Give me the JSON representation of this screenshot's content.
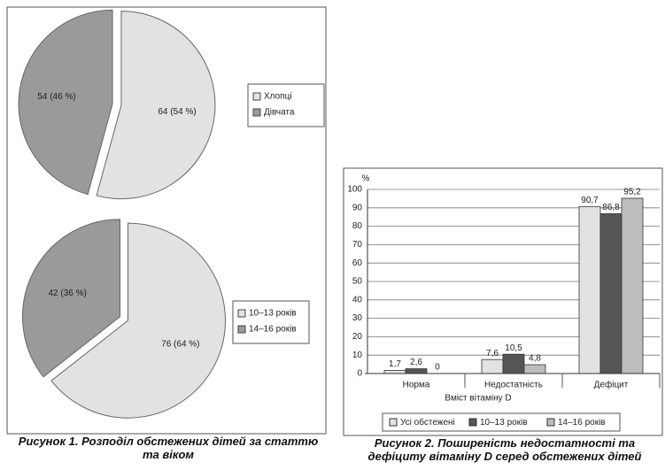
{
  "chart_data": [
    {
      "type": "pie",
      "title": "Рисунок 1. Розподіл обстежених дітей за статтю та віком",
      "categories": [
        "Хлопці",
        "Дівчата"
      ],
      "values": [
        64,
        54
      ],
      "value_labels": [
        "64 (54 %)",
        "54 (46 %)"
      ],
      "colors": [
        "#e2e2e2",
        "#9a9a9a"
      ]
    },
    {
      "type": "pie",
      "categories": [
        "10–13 років",
        "14–16 років"
      ],
      "values": [
        76,
        42
      ],
      "value_labels": [
        "76 (64 %)",
        "42 (36 %)"
      ],
      "colors": [
        "#e2e2e2",
        "#9a9a9a"
      ]
    },
    {
      "type": "bar",
      "title": "Рисунок 2. Поширеність недостатності та дефіциту вітаміну D серед обстежених дітей",
      "ylabel": "%",
      "xlabel": "Вміст вітаміну D",
      "categories": [
        "Норма",
        "Недостатність",
        "Дефіцит"
      ],
      "series": [
        {
          "name": "Усі обстежені",
          "color": "#e2e2e2",
          "values": [
            1.7,
            7.6,
            90.7
          ],
          "value_labels": [
            "1,7",
            "7,6",
            "90,7"
          ]
        },
        {
          "name": "10–13 років",
          "color": "#555555",
          "values": [
            2.6,
            10.5,
            86.8
          ],
          "value_labels": [
            "2,6",
            "10,5",
            "86,8"
          ]
        },
        {
          "name": "14–16 років",
          "color": "#bdbdbd",
          "values": [
            0,
            4.8,
            95.2
          ],
          "value_labels": [
            "0",
            "4,8",
            "95,2"
          ]
        }
      ],
      "ylim": [
        0,
        100
      ],
      "yticks": [
        0,
        10,
        20,
        30,
        40,
        50,
        60,
        70,
        80,
        90,
        100
      ],
      "grid": true
    }
  ]
}
